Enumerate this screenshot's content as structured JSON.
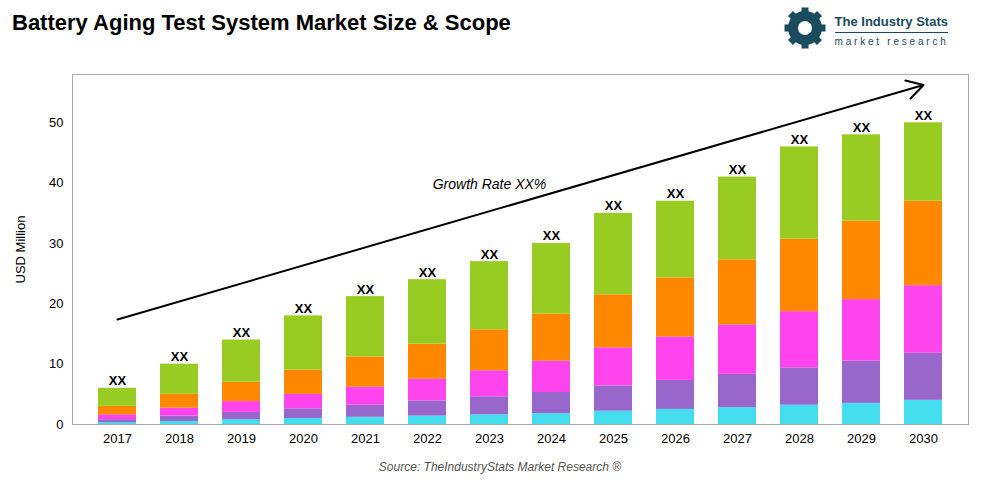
{
  "chart_data": {
    "type": "bar",
    "stacked": true,
    "title": "Battery Aging Test System Market Size & Scope",
    "ylabel": "USD Million",
    "source": "Source: TheIndustryStats Market Research ®",
    "logo": {
      "name": "The Industry Stats",
      "tagline": "m a r k e t   r e s e a r c h",
      "color": "#1a4a5e"
    },
    "categories": [
      "2017",
      "2018",
      "2019",
      "2020",
      "2021",
      "2022",
      "2023",
      "2024",
      "2025",
      "2026",
      "2027",
      "2028",
      "2029",
      "2030"
    ],
    "series": [
      {
        "color": "#44DDEE",
        "values": [
          0.3,
          0.5,
          0.8,
          1.0,
          1.2,
          1.4,
          1.6,
          1.8,
          2.2,
          2.5,
          2.8,
          3.2,
          3.5,
          4.0
        ]
      },
      {
        "color": "#9966CC",
        "values": [
          0.5,
          0.9,
          1.2,
          1.6,
          2.0,
          2.5,
          3.0,
          3.5,
          4.2,
          4.8,
          5.5,
          6.2,
          7.0,
          7.8
        ]
      },
      {
        "color": "#FF44EE",
        "values": [
          0.8,
          1.3,
          1.8,
          2.4,
          3.0,
          3.6,
          4.3,
          5.2,
          6.3,
          7.2,
          8.2,
          9.3,
          10.2,
          11.2
        ]
      },
      {
        "color": "#FF8800",
        "values": [
          1.4,
          2.3,
          3.2,
          4.0,
          5.0,
          5.8,
          6.8,
          7.8,
          8.8,
          9.8,
          10.8,
          12.0,
          13.0,
          14.0
        ]
      },
      {
        "color": "#99CC22",
        "values": [
          3.0,
          5.0,
          7.0,
          9.0,
          10.0,
          10.7,
          11.3,
          11.7,
          13.5,
          12.7,
          13.7,
          15.3,
          14.3,
          13.0
        ]
      }
    ],
    "bar_labels": "XX",
    "annotation": "Growth Rate XX%",
    "ylim": [
      0,
      58
    ],
    "yticks": [
      0,
      10,
      20,
      30,
      40,
      50
    ],
    "grid": false
  }
}
